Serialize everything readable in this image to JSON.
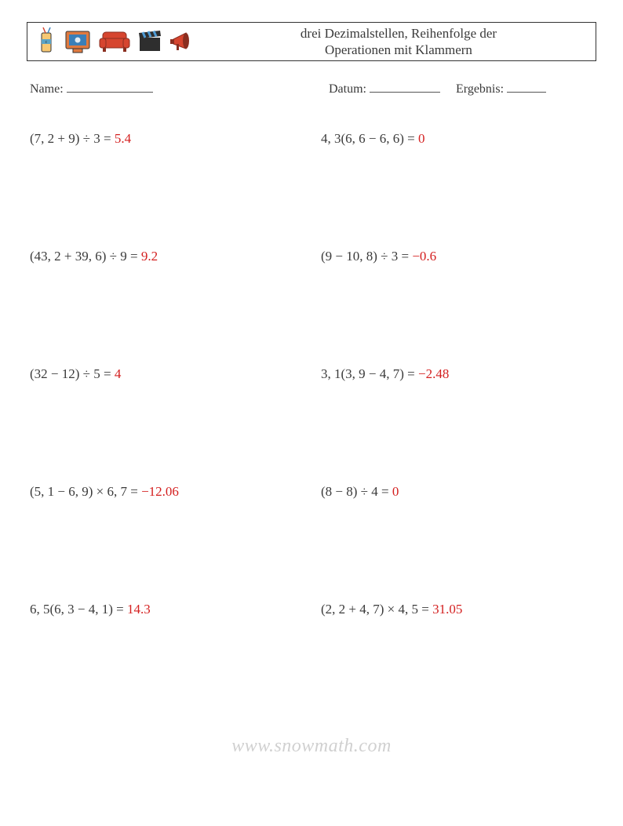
{
  "header": {
    "title_line1": "drei Dezimalstellen, Reihenfolge der",
    "title_line2": "Operationen mit Klammern",
    "icon_colors": {
      "cup_body": "#f7c873",
      "cup_stripe": "#5aa3c6",
      "screen_frame": "#e07a3f",
      "screen_inner": "#3a7fb8",
      "couch": "#d6452f",
      "clapper_body": "#2e2e2e",
      "clapper_stripe": "#4e9bd4",
      "megaphone": "#d6452f",
      "megaphone_dark": "#8a2e20"
    }
  },
  "meta": {
    "name_label": "Name:",
    "date_label": "Datum:",
    "result_label": "Ergebnis:",
    "name_underline_width": 110,
    "date_underline_width": 90,
    "result_underline_width": 50
  },
  "problems": [
    {
      "expr": "(7, 2 + 9) ÷ 3 = ",
      "ans": "5.4"
    },
    {
      "expr": "4, 3(6, 6 − 6, 6) = ",
      "ans": "0"
    },
    {
      "expr": "(43, 2 + 39, 6) ÷ 9 = ",
      "ans": "9.2"
    },
    {
      "expr": "(9 − 10, 8) ÷ 3 = ",
      "ans": "−0.6"
    },
    {
      "expr": "(32 − 12) ÷ 5 = ",
      "ans": "4"
    },
    {
      "expr": "3, 1(3, 9 − 4, 7) = ",
      "ans": "−2.48"
    },
    {
      "expr": "(5, 1 − 6, 9) × 6, 7 = ",
      "ans": "−12.06"
    },
    {
      "expr": "(8 − 8) ÷ 4 = ",
      "ans": "0"
    },
    {
      "expr": "6, 5(6, 3 − 4, 1) = ",
      "ans": "14.3"
    },
    {
      "expr": "(2, 2 + 4, 7) × 4, 5 = ",
      "ans": "31.05"
    }
  ],
  "watermark": "www.snowmath.com"
}
